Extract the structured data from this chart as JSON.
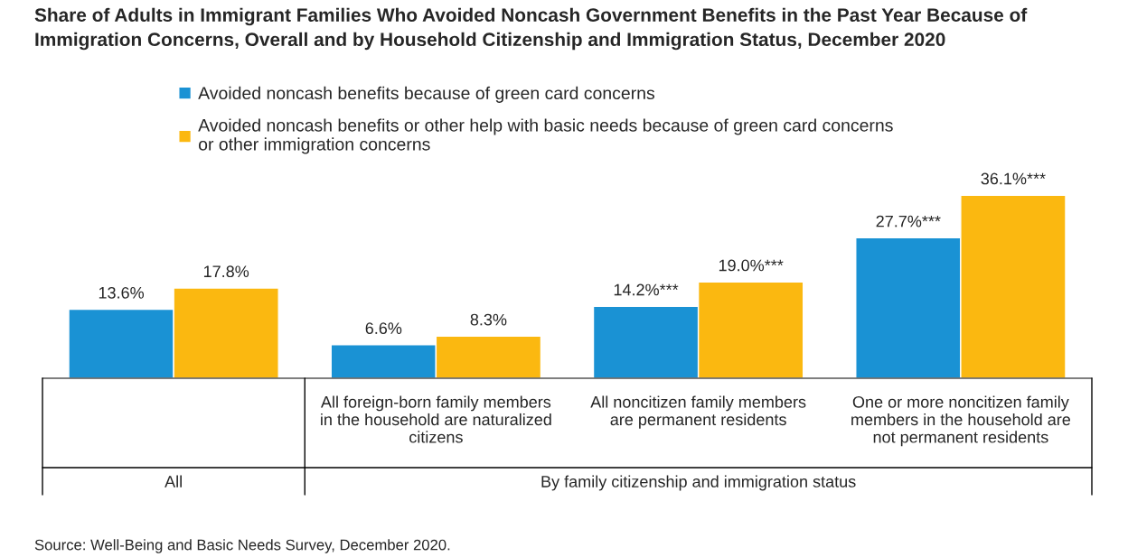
{
  "chart_data": {
    "type": "bar",
    "title": "Share of Adults in Immigrant Families Who Avoided Noncash Government Benefits in the Past Year Because of\nImmigration Concerns, Overall and by Household Citizenship and Immigration Status, December 2020",
    "categories": [
      null,
      "All foreign-born family members\nin the household are naturalized\ncitizens",
      "All noncitizen family members\nare permanent residents",
      "One or more noncitizen family\nmembers in the household are\nnot permanent residents"
    ],
    "series": [
      {
        "name": "Avoided noncash benefits because of green card concerns",
        "color": "#1a92d4",
        "values": [
          13.6,
          6.6,
          14.2,
          27.7
        ],
        "value_labels": [
          "13.6%",
          "6.6%",
          "14.2%***",
          "27.7%***"
        ]
      },
      {
        "name": "Avoided noncash benefits or other help with basic needs because of green card concerns\nor other immigration concerns",
        "color": "#fbb810",
        "values": [
          17.8,
          8.3,
          19.0,
          36.1
        ],
        "value_labels": [
          "17.8%",
          "8.3%",
          "19.0%***",
          "36.1%***"
        ]
      }
    ],
    "annotations": [
      "All",
      "By family citizenship and immigration status",
      "Source: Well-Being and Basic Needs Survey, December 2020."
    ],
    "legend": "top",
    "grid": false
  }
}
